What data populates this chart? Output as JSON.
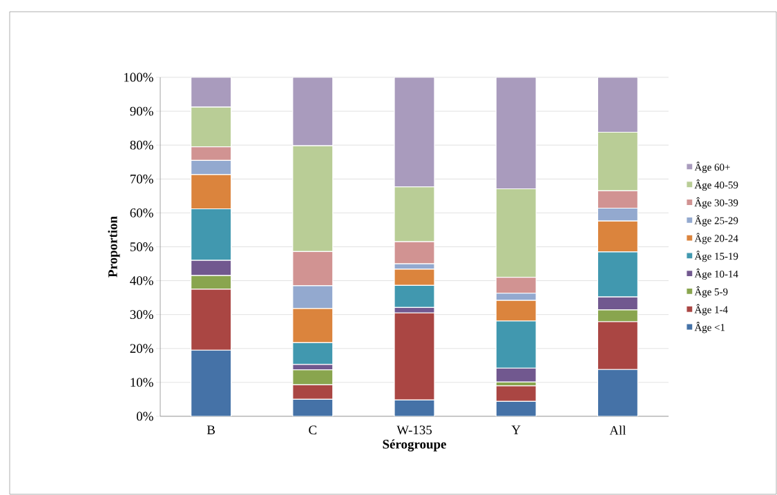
{
  "chart_data": {
    "type": "bar",
    "stacked": true,
    "xlabel": "Sérogroupe",
    "ylabel": "Proportion",
    "categories": [
      "B",
      "C",
      "W-135",
      "Y",
      "All"
    ],
    "ylim": [
      0,
      100
    ],
    "yticks": [
      {
        "value": 0,
        "label": "0%"
      },
      {
        "value": 10,
        "label": "10%"
      },
      {
        "value": 20,
        "label": "20%"
      },
      {
        "value": 30,
        "label": "30%"
      },
      {
        "value": 40,
        "label": "40%"
      },
      {
        "value": 50,
        "label": "50%"
      },
      {
        "value": 60,
        "label": "60%"
      },
      {
        "value": 70,
        "label": "70%"
      },
      {
        "value": 80,
        "label": "80%"
      },
      {
        "value": 90,
        "label": "90%"
      },
      {
        "value": 100,
        "label": "100%"
      }
    ],
    "grid": "y",
    "legend": "right",
    "series": [
      {
        "name": "Âge <1",
        "color": "#4572a7",
        "values": [
          19.5,
          5,
          4.8,
          4.4,
          13.8
        ]
      },
      {
        "name": "Âge 1-4",
        "color": "#aa4643",
        "values": [
          18,
          4.3,
          25.7,
          4.6,
          14.1
        ]
      },
      {
        "name": "Âge 5-9",
        "color": "#89a54e",
        "values": [
          4,
          4.4,
          0,
          1.1,
          3.5
        ]
      },
      {
        "name": "Âge 10-14",
        "color": "#71588f",
        "values": [
          4.5,
          1.6,
          1.6,
          4.1,
          3.8
        ]
      },
      {
        "name": "Âge 15-19",
        "color": "#4198af",
        "values": [
          15.2,
          6.4,
          6.5,
          13.9,
          13.3
        ]
      },
      {
        "name": "Âge 20-24",
        "color": "#db843d",
        "values": [
          10.1,
          10.1,
          4.8,
          6.1,
          9.1
        ]
      },
      {
        "name": "Âge 25-29",
        "color": "#93a9cf",
        "values": [
          4.2,
          6.7,
          1.6,
          2.1,
          3.8
        ]
      },
      {
        "name": "Âge 30-39",
        "color": "#d19392",
        "values": [
          4,
          10.1,
          6.5,
          4.7,
          5.1
        ]
      },
      {
        "name": "Âge 40-59",
        "color": "#b9cd96",
        "values": [
          11.7,
          31.2,
          16.2,
          26.1,
          17.3
        ]
      },
      {
        "name": "Âge 60+",
        "color": "#a99bbd",
        "values": [
          8.8,
          20.2,
          32.3,
          32.9,
          16.2
        ]
      }
    ]
  }
}
